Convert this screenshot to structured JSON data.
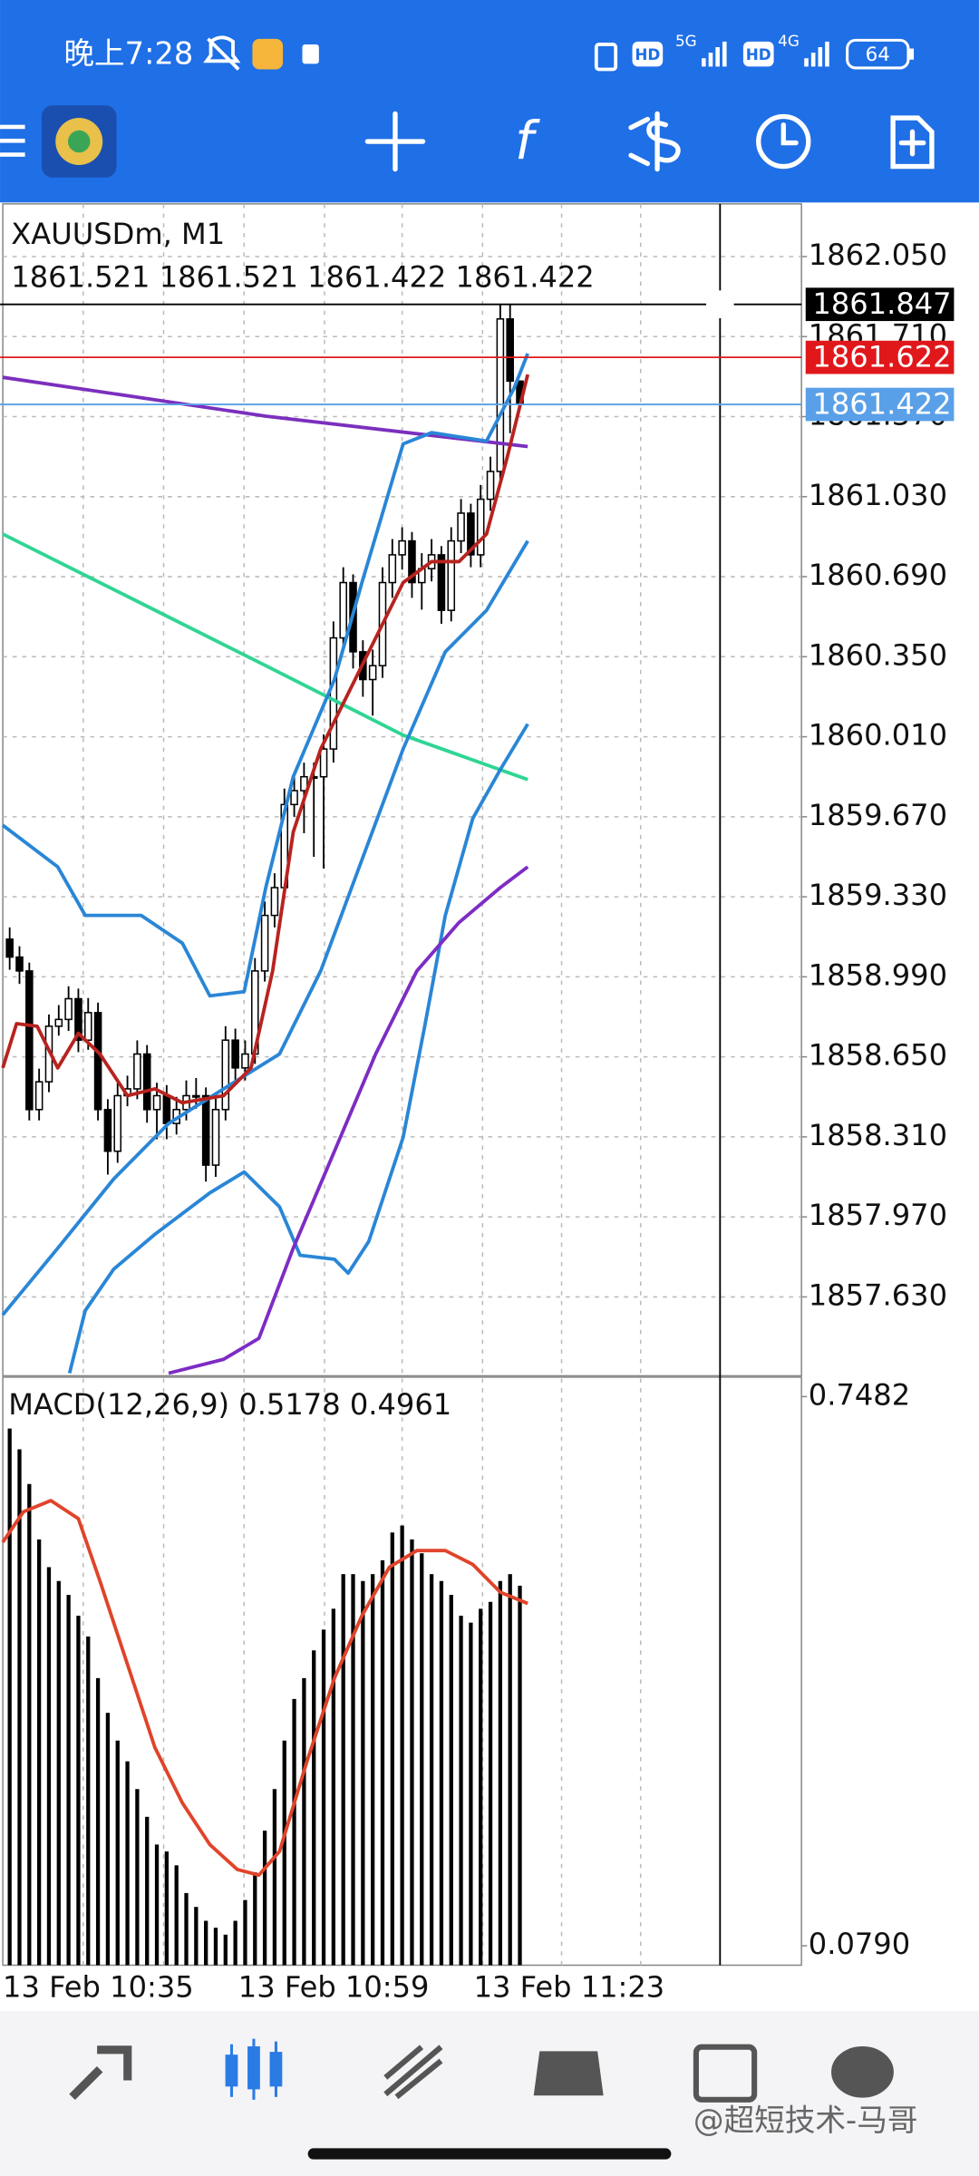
{
  "status_bar": {
    "time": "晚上7:28",
    "hd1": "HD",
    "net1": "5G",
    "hd2": "HD",
    "net2": "4G",
    "battery": "64"
  },
  "toolbar": {
    "function_label": "f"
  },
  "chart_data": [
    {
      "type": "candlestick",
      "title": "XAUUSDm, M1",
      "subtitle": "1861.521 1861.521 1861.422 1861.422",
      "xlim": [
        -0.7,
        80.7
      ],
      "xticks": [
        {
          "value": 0,
          "label": "13 Feb 10:35"
        },
        {
          "value": 24,
          "label": "13 Feb 10:59"
        },
        {
          "value": 48,
          "label": "13 Feb 11:23"
        }
      ],
      "ylim": [
        1857.295,
        1862.274
      ],
      "yticks": [
        {
          "value": 1862.05,
          "label": "1862.050"
        },
        {
          "value": 1861.71,
          "label": "1861.710"
        },
        {
          "value": 1861.37,
          "label": "1861.370"
        },
        {
          "value": 1861.03,
          "label": "1861.030"
        },
        {
          "value": 1860.69,
          "label": "1860.690"
        },
        {
          "value": 1860.35,
          "label": "1860.350"
        },
        {
          "value": 1860.01,
          "label": "1860.010"
        },
        {
          "value": 1859.67,
          "label": "1859.670"
        },
        {
          "value": 1859.33,
          "label": "1859.330"
        },
        {
          "value": 1858.99,
          "label": "1858.990"
        },
        {
          "value": 1858.65,
          "label": "1858.650"
        },
        {
          "value": 1858.31,
          "label": "1858.310"
        },
        {
          "value": 1857.97,
          "label": "1857.970"
        },
        {
          "value": 1857.63,
          "label": "1857.630"
        }
      ],
      "grid": true,
      "open": [
        1859.15,
        1859.074,
        1859.015,
        1858.426,
        1858.544,
        1858.78,
        1858.809,
        1858.897,
        1858.721,
        1858.838,
        1858.426,
        1858.249,
        1858.485,
        1858.514,
        1858.662,
        1858.426,
        1858.485,
        1858.367,
        1858.426,
        1858.485,
        1858.485,
        1858.19,
        1858.426,
        1858.721,
        1858.603,
        1858.662,
        1859.015,
        1859.251,
        1859.369,
        1859.722,
        1859.781,
        1859.84,
        1859.84,
        1859.958,
        1860.43,
        1860.665,
        1860.371,
        1860.253,
        1860.312,
        1860.665,
        1860.783,
        1860.842,
        1860.665,
        1860.724,
        1860.783,
        1860.547,
        1860.842,
        1860.96,
        1860.783,
        1861.019,
        1861.137,
        1861.785,
        1861.521
      ],
      "high": [
        1859.2,
        1859.12,
        1859.05,
        1858.6,
        1858.83,
        1858.87,
        1858.95,
        1858.94,
        1858.9,
        1858.88,
        1858.47,
        1858.54,
        1858.57,
        1858.72,
        1858.7,
        1858.54,
        1858.53,
        1858.48,
        1858.55,
        1858.56,
        1858.52,
        1858.48,
        1858.78,
        1858.77,
        1858.72,
        1859.07,
        1859.31,
        1859.43,
        1859.79,
        1859.85,
        1859.9,
        1859.9,
        1860.02,
        1860.5,
        1860.73,
        1860.7,
        1860.42,
        1860.38,
        1860.73,
        1860.85,
        1860.9,
        1860.88,
        1860.79,
        1860.85,
        1860.82,
        1860.9,
        1861.02,
        1861.0,
        1861.08,
        1861.2,
        1861.847,
        1861.847,
        1861.521
      ],
      "low": [
        1859.02,
        1858.96,
        1858.38,
        1858.38,
        1858.5,
        1858.74,
        1858.76,
        1858.67,
        1858.68,
        1858.38,
        1858.15,
        1858.2,
        1858.44,
        1858.47,
        1858.37,
        1858.3,
        1858.3,
        1858.32,
        1858.38,
        1858.43,
        1858.12,
        1858.14,
        1858.38,
        1858.55,
        1858.55,
        1858.62,
        1858.97,
        1859.2,
        1859.32,
        1859.67,
        1859.6,
        1859.5,
        1859.45,
        1859.9,
        1860.38,
        1860.3,
        1860.18,
        1860.1,
        1860.26,
        1860.6,
        1860.72,
        1860.6,
        1860.55,
        1860.67,
        1860.49,
        1860.5,
        1860.79,
        1860.73,
        1860.73,
        1860.97,
        1861.1,
        1861.3,
        1861.422
      ],
      "close": [
        1859.074,
        1859.015,
        1858.426,
        1858.544,
        1858.78,
        1858.809,
        1858.897,
        1858.721,
        1858.838,
        1858.426,
        1858.249,
        1858.485,
        1858.514,
        1858.662,
        1858.426,
        1858.485,
        1858.367,
        1858.426,
        1858.485,
        1858.485,
        1858.19,
        1858.426,
        1858.721,
        1858.603,
        1858.662,
        1859.015,
        1859.251,
        1859.369,
        1859.722,
        1859.781,
        1859.84,
        1859.84,
        1859.958,
        1860.43,
        1860.665,
        1860.371,
        1860.253,
        1860.312,
        1860.665,
        1860.783,
        1860.842,
        1860.665,
        1860.724,
        1860.783,
        1860.547,
        1860.842,
        1860.96,
        1860.783,
        1861.019,
        1861.137,
        1861.785,
        1861.521,
        1861.422
      ],
      "series": [
        {
          "color": "#7b2fbe",
          "x": [
            -0.7,
            26.1,
            52.8
          ],
          "values": [
            1861.537,
            1861.372,
            1861.243
          ]
        },
        {
          "color": "#2fd594",
          "x": [
            -0.7,
            13.4,
            26.1,
            40.1,
            52.8
          ],
          "values": [
            1860.871,
            1860.577,
            1860.312,
            1860.017,
            1859.828
          ]
        },
        {
          "color": "#2a86d6",
          "x": [
            -0.7,
            4.9,
            7.7,
            13.4,
            17.6,
            20.4,
            23.9,
            26.1,
            28.9,
            33.1,
            35.9,
            40.1,
            43.0,
            48.6,
            51.4,
            52.8
          ],
          "values": [
            1859.634,
            1859.457,
            1859.251,
            1859.251,
            1859.133,
            1858.909,
            1858.927,
            1859.369,
            1859.84,
            1860.253,
            1860.665,
            1861.254,
            1861.302,
            1861.266,
            1861.49,
            1861.638
          ]
        },
        {
          "color": "#2a86d6",
          "x": [
            -0.7,
            4.9,
            10.6,
            16.2,
            21.8,
            27.5,
            31.7,
            35.9,
            40.1,
            44.4,
            48.6,
            52.8
          ],
          "values": [
            1857.554,
            1857.837,
            1858.131,
            1858.367,
            1858.514,
            1858.662,
            1859.015,
            1859.487,
            1859.958,
            1860.371,
            1860.547,
            1860.842
          ]
        },
        {
          "color": "#2a86d6",
          "x": [
            6.1,
            7.7,
            10.6,
            14.8,
            20.4,
            23.9,
            27.5,
            29.6,
            33.1,
            34.5,
            36.6,
            40.1,
            42.3,
            44.4,
            47.2,
            50.0,
            52.8
          ],
          "values": [
            1857.306,
            1857.572,
            1857.748,
            1857.896,
            1858.072,
            1858.161,
            1858.013,
            1857.807,
            1857.79,
            1857.731,
            1857.866,
            1858.308,
            1858.78,
            1859.251,
            1859.663,
            1859.87,
            1860.064
          ]
        },
        {
          "color": "#7d2cc4",
          "x": [
            16.2,
            21.8,
            25.4,
            28.9,
            33.1,
            37.3,
            41.5,
            45.8,
            50.0,
            52.8
          ],
          "values": [
            1857.306,
            1857.365,
            1857.454,
            1857.837,
            1858.249,
            1858.662,
            1859.015,
            1859.221,
            1859.369,
            1859.457
          ]
        },
        {
          "color": "#b8231f",
          "x": [
            -0.7,
            0.7,
            2.8,
            4.9,
            7.0,
            9.2,
            12.0,
            14.8,
            17.6,
            21.8,
            24.6,
            26.8,
            28.9,
            31.7,
            35.9,
            40.1,
            43.0,
            45.8,
            48.6,
            50.7,
            52.8
          ],
          "values": [
            1858.603,
            1858.791,
            1858.78,
            1858.603,
            1858.75,
            1858.662,
            1858.485,
            1858.514,
            1858.455,
            1858.485,
            1858.603,
            1859.015,
            1859.605,
            1859.958,
            1860.312,
            1860.665,
            1860.754,
            1860.754,
            1860.871,
            1861.196,
            1861.549
          ]
        }
      ],
      "price_lines": [
        {
          "value": 1861.847,
          "color": "#000000"
        },
        {
          "value": 1861.622,
          "color": "#e0181b"
        },
        {
          "value": 1861.422,
          "color": "#5aa0e8"
        }
      ],
      "crosshair_x": 72.4
    },
    {
      "type": "bar",
      "title": "MACD(12,26,9) 0.5178 0.4961",
      "color": "#000000",
      "xlim": [
        -0.7,
        80.7
      ],
      "ylim": [
        0.0554,
        0.7719
      ],
      "yticks": [
        0.7482,
        {
          "value": 0.079,
          "label": "0.0790"
        }
      ],
      "values": [
        0.7093,
        0.684,
        0.6417,
        0.5742,
        0.5404,
        0.5235,
        0.5066,
        0.4812,
        0.4559,
        0.4052,
        0.3629,
        0.3291,
        0.3038,
        0.27,
        0.2362,
        0.2024,
        0.194,
        0.1771,
        0.1433,
        0.1264,
        0.1095,
        0.101,
        0.0926,
        0.1095,
        0.1348,
        0.1686,
        0.2193,
        0.27,
        0.3291,
        0.3798,
        0.4052,
        0.439,
        0.4643,
        0.4897,
        0.5319,
        0.5319,
        0.5235,
        0.5319,
        0.5488,
        0.5826,
        0.5911,
        0.5742,
        0.5573,
        0.5319,
        0.5235,
        0.5066,
        0.4812,
        0.4728,
        0.4897,
        0.4981,
        0.5235,
        0.5319,
        0.5178
      ],
      "series": [
        {
          "color": "#e0442a",
          "x": [
            -0.7,
            1.4,
            4.2,
            7.0,
            9.2,
            12.0,
            14.8,
            17.6,
            20.4,
            23.2,
            25.4,
            27.5,
            30.3,
            33.1,
            35.9,
            38.7,
            41.5,
            44.4,
            47.2,
            50.0,
            52.8
          ],
          "values": [
            0.5708,
            0.6079,
            0.6215,
            0.5995,
            0.5235,
            0.4221,
            0.3207,
            0.2531,
            0.2024,
            0.172,
            0.1652,
            0.194,
            0.3038,
            0.4052,
            0.4812,
            0.5404,
            0.5606,
            0.5606,
            0.5437,
            0.5099,
            0.4961
          ]
        }
      ]
    }
  ],
  "watermark": "@超短技术-马哥"
}
